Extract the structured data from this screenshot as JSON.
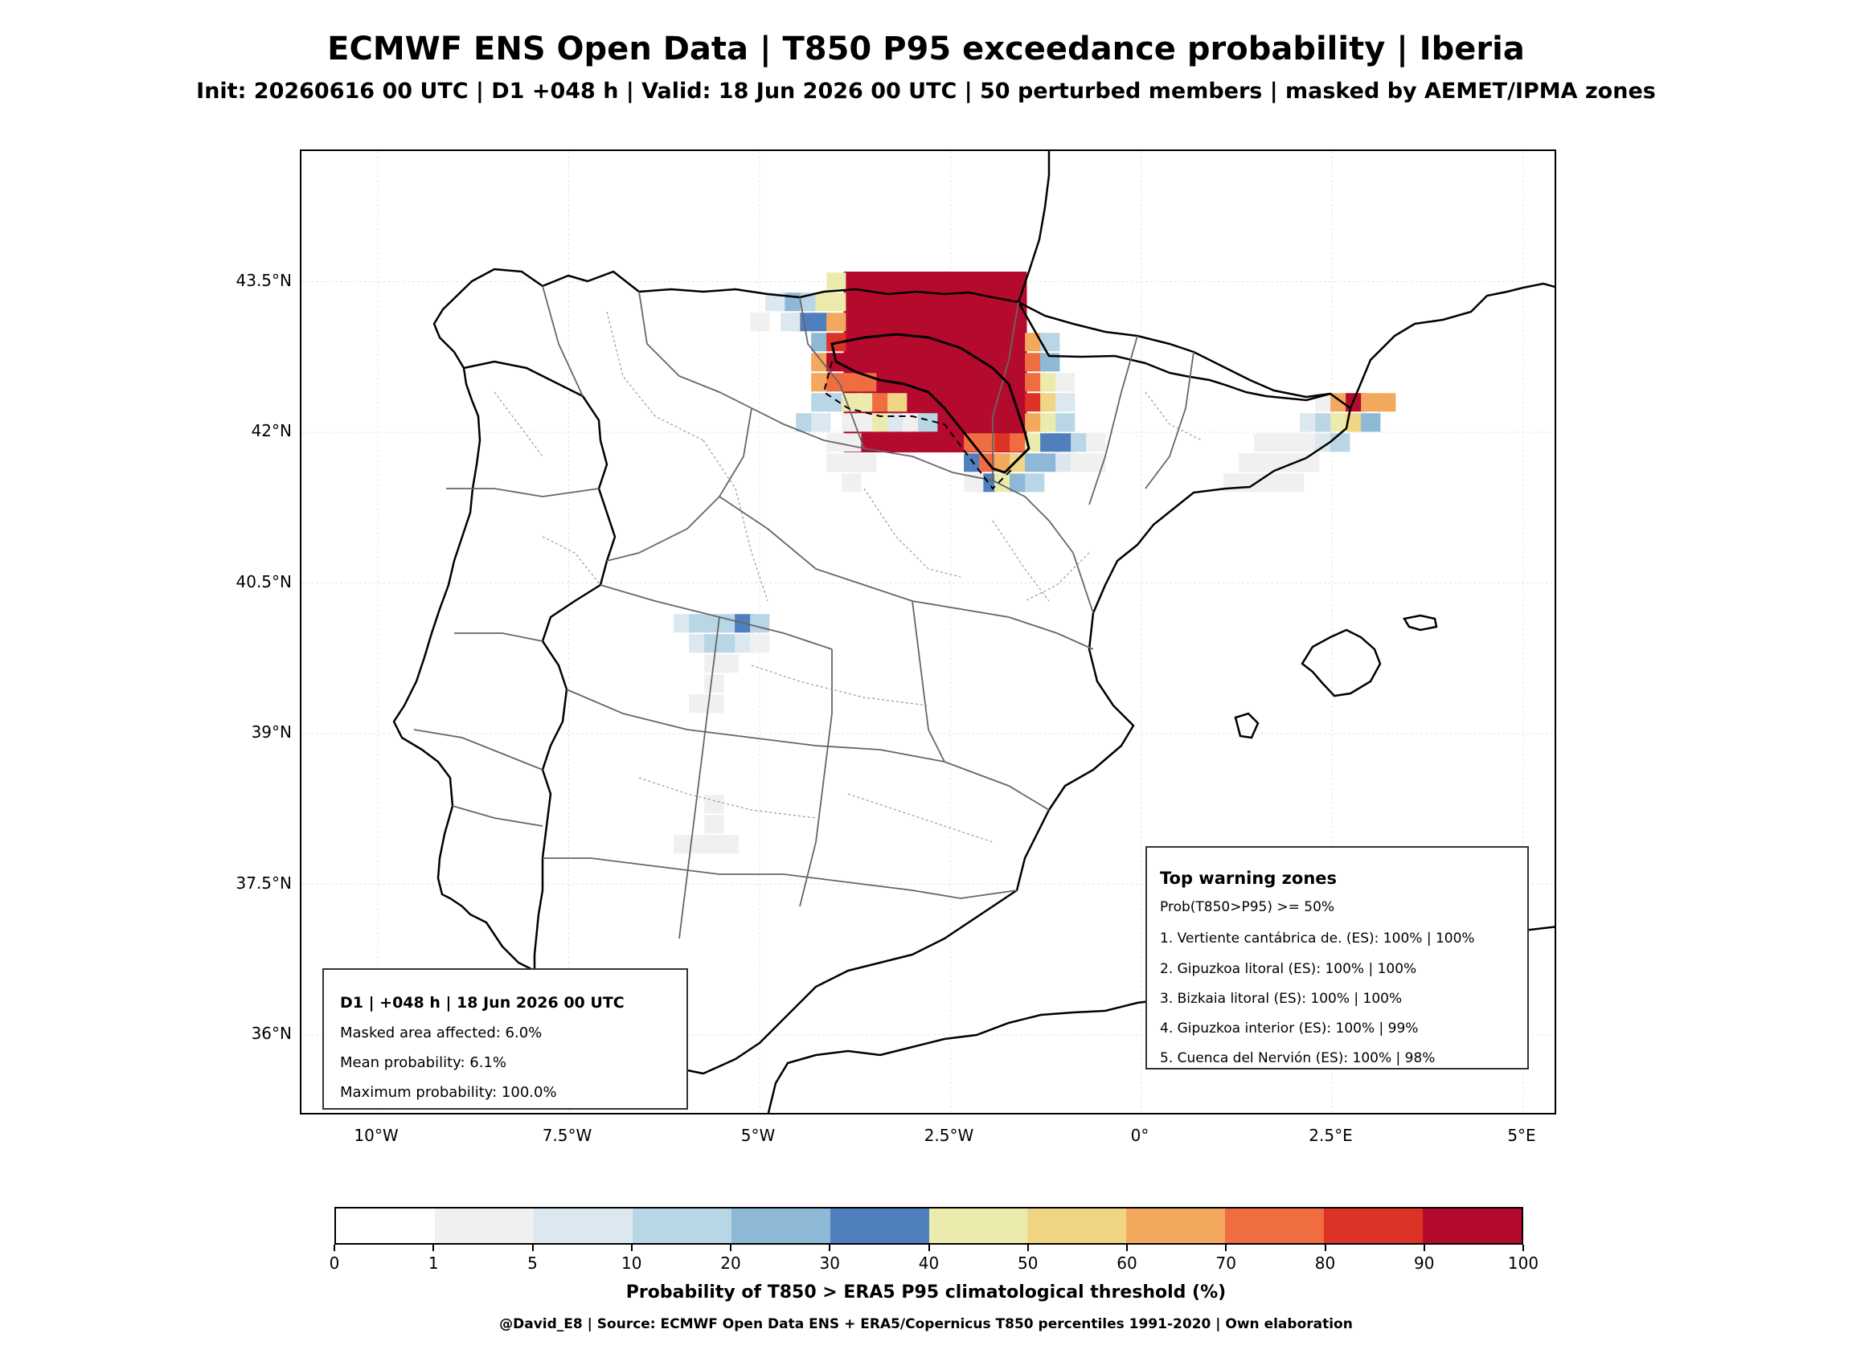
{
  "title": "ECMWF ENS Open Data | T850 P95 exceedance probability | Iberia",
  "subtitle": "Init: 20260616 00 UTC | D1 +048 h | Valid: 18 Jun 2026 00 UTC | 50 perturbed members | masked by AEMET/IPMA zones",
  "map": {
    "lat_ticks": [
      {
        "label": "43.5°N",
        "value": 43.5
      },
      {
        "label": "42°N",
        "value": 42.0
      },
      {
        "label": "40.5°N",
        "value": 40.5
      },
      {
        "label": "39°N",
        "value": 39.0
      },
      {
        "label": "37.5°N",
        "value": 37.5
      },
      {
        "label": "36°N",
        "value": 36.0
      }
    ],
    "lon_ticks": [
      {
        "label": "10°W",
        "value": -10.0
      },
      {
        "label": "7.5°W",
        "value": -7.5
      },
      {
        "label": "5°W",
        "value": -5.0
      },
      {
        "label": "2.5°W",
        "value": -2.5
      },
      {
        "label": "0°",
        "value": 0.0
      },
      {
        "label": "2.5°E",
        "value": 2.5
      },
      {
        "label": "5°E",
        "value": 5.0
      }
    ],
    "extent": {
      "lon_min": -11.0,
      "lon_max": 5.5,
      "lat_min": 35.0,
      "lat_max": 44.8
    }
  },
  "summary_box": {
    "heading": "D1 | +048 h | 18 Jun 2026 00 UTC",
    "line1": "Masked area affected: 6.0%",
    "line2": "Mean probability: 6.1%",
    "line3": "Maximum probability: 100.0%"
  },
  "warning_box": {
    "heading": "Top warning zones",
    "criterion": "Prob(T850>P95) >= 50%",
    "zones": [
      "1. Vertiente cantábrica de. (ES): 100% | 100%",
      "2. Gipuzkoa litoral (ES): 100% | 100%",
      "3. Bizkaia litoral (ES): 100% | 100%",
      "4. Gipuzkoa interior (ES): 100% | 99%",
      "5. Cuenca del Nervión (ES): 100% | 98%"
    ]
  },
  "colorbar": {
    "label": "Probability of T850 > ERA5 P95 climatological threshold (%)",
    "ticks": [
      "0",
      "1",
      "5",
      "10",
      "20",
      "30",
      "40",
      "50",
      "60",
      "70",
      "80",
      "90",
      "100"
    ],
    "colors": [
      "#ffffff",
      "#f0f0f0",
      "#dce8f0",
      "#b9d6e6",
      "#8db8d6",
      "#4f7fbd",
      "#ecebae",
      "#f0d584",
      "#f2a95e",
      "#ef6d41",
      "#dc3326",
      "#b40a2d"
    ]
  },
  "credit": "@David_E8 | Source: ECMWF Open Data ENS + ERA5/Copernicus T850 percentiles 1991-2020 | Own elaboration",
  "probability_cells": [
    {
      "lon": -4.0,
      "lat": 43.5,
      "p": 45
    },
    {
      "lon": -4.2,
      "lat": 43.3,
      "p": 45
    },
    {
      "lon": -4.0,
      "lat": 43.3,
      "p": 45
    },
    {
      "lon": -4.4,
      "lat": 43.3,
      "p": 12
    },
    {
      "lon": -4.6,
      "lat": 43.3,
      "p": 22
    },
    {
      "lon": -4.8,
      "lat": 43.3,
      "p": 8
    },
    {
      "lon": -4.4,
      "lat": 43.1,
      "p": 35
    },
    {
      "lon": -4.2,
      "lat": 43.1,
      "p": 35
    },
    {
      "lon": -4.0,
      "lat": 43.1,
      "p": 65
    },
    {
      "lon": -4.6,
      "lat": 43.1,
      "p": 8
    },
    {
      "lon": -5.0,
      "lat": 43.1,
      "p": 3
    },
    {
      "lon": -4.2,
      "lat": 42.9,
      "p": 22
    },
    {
      "lon": -4.0,
      "lat": 42.9,
      "p": 85
    },
    {
      "lon": -4.2,
      "lat": 42.7,
      "p": 65
    },
    {
      "lon": -4.0,
      "lat": 42.7,
      "p": 95
    },
    {
      "lon": -4.2,
      "lat": 42.5,
      "p": 65
    },
    {
      "lon": -4.0,
      "lat": 42.5,
      "p": 75
    },
    {
      "lon": -3.8,
      "lat": 42.5,
      "p": 75
    },
    {
      "lon": -3.6,
      "lat": 42.5,
      "p": 75
    },
    {
      "lon": -4.2,
      "lat": 42.3,
      "p": 15
    },
    {
      "lon": -4.0,
      "lat": 42.3,
      "p": 15
    },
    {
      "lon": -3.8,
      "lat": 42.3,
      "p": 45
    },
    {
      "lon": -3.6,
      "lat": 42.3,
      "p": 45
    },
    {
      "lon": -3.4,
      "lat": 42.3,
      "p": 75
    },
    {
      "lon": -3.2,
      "lat": 42.3,
      "p": 55
    },
    {
      "lon": -4.4,
      "lat": 42.1,
      "p": 12
    },
    {
      "lon": -4.2,
      "lat": 42.1,
      "p": 8
    },
    {
      "lon": -3.8,
      "lat": 42.1,
      "p": 3
    },
    {
      "lon": -3.6,
      "lat": 42.1,
      "p": 3
    },
    {
      "lon": -3.4,
      "lat": 42.1,
      "p": 45
    },
    {
      "lon": -3.2,
      "lat": 42.1,
      "p": 8
    },
    {
      "lon": -3.0,
      "lat": 42.1,
      "p": 3
    },
    {
      "lon": -2.8,
      "lat": 42.1,
      "p": 12
    },
    {
      "lon": -4.0,
      "lat": 41.9,
      "p": 3
    },
    {
      "lon": -3.8,
      "lat": 41.9,
      "p": 3
    },
    {
      "lon": -4.0,
      "lat": 41.7,
      "p": 3
    },
    {
      "lon": -3.8,
      "lat": 41.7,
      "p": 3
    },
    {
      "lon": -3.6,
      "lat": 41.7,
      "p": 3
    },
    {
      "lon": -3.8,
      "lat": 41.5,
      "p": 3
    },
    {
      "lon": -1.4,
      "lat": 42.9,
      "p": 65
    },
    {
      "lon": -1.2,
      "lat": 42.9,
      "p": 12
    },
    {
      "lon": -1.4,
      "lat": 42.7,
      "p": 75
    },
    {
      "lon": -1.2,
      "lat": 42.7,
      "p": 25
    },
    {
      "lon": -1.4,
      "lat": 42.5,
      "p": 75
    },
    {
      "lon": -1.2,
      "lat": 42.5,
      "p": 45
    },
    {
      "lon": -1.0,
      "lat": 42.5,
      "p": 3
    },
    {
      "lon": -1.4,
      "lat": 42.3,
      "p": 85
    },
    {
      "lon": -1.2,
      "lat": 42.3,
      "p": 55
    },
    {
      "lon": -1.0,
      "lat": 42.3,
      "p": 8
    },
    {
      "lon": -1.6,
      "lat": 42.1,
      "p": 95
    },
    {
      "lon": -1.4,
      "lat": 42.1,
      "p": 65
    },
    {
      "lon": -1.2,
      "lat": 42.1,
      "p": 45
    },
    {
      "lon": -1.0,
      "lat": 42.1,
      "p": 12
    },
    {
      "lon": -2.2,
      "lat": 41.9,
      "p": 75
    },
    {
      "lon": -2.0,
      "lat": 41.9,
      "p": 75
    },
    {
      "lon": -1.8,
      "lat": 41.9,
      "p": 85
    },
    {
      "lon": -1.6,
      "lat": 41.9,
      "p": 75
    },
    {
      "lon": -1.4,
      "lat": 41.9,
      "p": 45
    },
    {
      "lon": -1.2,
      "lat": 41.9,
      "p": 35
    },
    {
      "lon": -1.0,
      "lat": 41.9,
      "p": 35
    },
    {
      "lon": -0.8,
      "lat": 41.9,
      "p": 15
    },
    {
      "lon": -0.6,
      "lat": 41.9,
      "p": 3
    },
    {
      "lon": -2.2,
      "lat": 41.7,
      "p": 35
    },
    {
      "lon": -2.0,
      "lat": 41.7,
      "p": 75
    },
    {
      "lon": -1.8,
      "lat": 41.7,
      "p": 65
    },
    {
      "lon": -1.6,
      "lat": 41.7,
      "p": 55
    },
    {
      "lon": -1.4,
      "lat": 41.7,
      "p": 22
    },
    {
      "lon": -1.2,
      "lat": 41.7,
      "p": 22
    },
    {
      "lon": -1.0,
      "lat": 41.7,
      "p": 8
    },
    {
      "lon": -0.8,
      "lat": 41.7,
      "p": 3
    },
    {
      "lon": -0.6,
      "lat": 41.7,
      "p": 3
    },
    {
      "lon": -2.0,
      "lat": 41.5,
      "p": 35
    },
    {
      "lon": -1.8,
      "lat": 41.5,
      "p": 45
    },
    {
      "lon": -1.6,
      "lat": 41.5,
      "p": 25
    },
    {
      "lon": -1.4,
      "lat": 41.5,
      "p": 12
    },
    {
      "lon": -2.2,
      "lat": 41.5,
      "p": 3
    },
    {
      "lon": 2.4,
      "lat": 42.3,
      "p": 3
    },
    {
      "lon": 2.6,
      "lat": 42.3,
      "p": 65
    },
    {
      "lon": 2.8,
      "lat": 42.3,
      "p": 95
    },
    {
      "lon": 3.0,
      "lat": 42.3,
      "p": 65
    },
    {
      "lon": 3.2,
      "lat": 42.3,
      "p": 65
    },
    {
      "lon": 2.2,
      "lat": 42.1,
      "p": 8
    },
    {
      "lon": 2.4,
      "lat": 42.1,
      "p": 15
    },
    {
      "lon": 2.6,
      "lat": 42.1,
      "p": 45
    },
    {
      "lon": 2.8,
      "lat": 42.1,
      "p": 55
    },
    {
      "lon": 3.0,
      "lat": 42.1,
      "p": 25
    },
    {
      "lon": 2.0,
      "lat": 41.9,
      "p": 3
    },
    {
      "lon": 2.2,
      "lat": 41.9,
      "p": 3
    },
    {
      "lon": 2.4,
      "lat": 41.9,
      "p": 8
    },
    {
      "lon": 2.6,
      "lat": 41.9,
      "p": 12
    },
    {
      "lon": 1.6,
      "lat": 41.9,
      "p": 3
    },
    {
      "lon": 1.8,
      "lat": 41.9,
      "p": 3
    },
    {
      "lon": 1.4,
      "lat": 41.7,
      "p": 3
    },
    {
      "lon": 1.6,
      "lat": 41.7,
      "p": 3
    },
    {
      "lon": 1.8,
      "lat": 41.7,
      "p": 3
    },
    {
      "lon": 2.0,
      "lat": 41.7,
      "p": 3
    },
    {
      "lon": 2.2,
      "lat": 41.7,
      "p": 3
    },
    {
      "lon": 1.2,
      "lat": 41.5,
      "p": 3
    },
    {
      "lon": 1.4,
      "lat": 41.5,
      "p": 3
    },
    {
      "lon": 1.6,
      "lat": 41.5,
      "p": 3
    },
    {
      "lon": 1.8,
      "lat": 41.5,
      "p": 3
    },
    {
      "lon": 2.0,
      "lat": 41.5,
      "p": 3
    },
    {
      "lon": -6.0,
      "lat": 40.1,
      "p": 8
    },
    {
      "lon": -5.8,
      "lat": 40.1,
      "p": 12
    },
    {
      "lon": -5.6,
      "lat": 40.1,
      "p": 12
    },
    {
      "lon": -5.4,
      "lat": 40.1,
      "p": 12
    },
    {
      "lon": -5.2,
      "lat": 40.1,
      "p": 35
    },
    {
      "lon": -5.0,
      "lat": 40.1,
      "p": 15
    },
    {
      "lon": -5.8,
      "lat": 39.9,
      "p": 8
    },
    {
      "lon": -5.6,
      "lat": 39.9,
      "p": 12
    },
    {
      "lon": -5.4,
      "lat": 39.9,
      "p": 15
    },
    {
      "lon": -5.2,
      "lat": 39.9,
      "p": 8
    },
    {
      "lon": -5.0,
      "lat": 39.9,
      "p": 3
    },
    {
      "lon": -5.6,
      "lat": 39.7,
      "p": 3
    },
    {
      "lon": -5.4,
      "lat": 39.7,
      "p": 3
    },
    {
      "lon": -5.6,
      "lat": 39.5,
      "p": 3
    },
    {
      "lon": -5.8,
      "lat": 39.3,
      "p": 3
    },
    {
      "lon": -5.6,
      "lat": 39.3,
      "p": 3
    },
    {
      "lon": -5.6,
      "lat": 38.3,
      "p": 3
    },
    {
      "lon": -5.6,
      "lat": 38.1,
      "p": 3
    },
    {
      "lon": -5.8,
      "lat": 37.9,
      "p": 3
    },
    {
      "lon": -5.6,
      "lat": 37.9,
      "p": 3
    },
    {
      "lon": -5.4,
      "lat": 37.9,
      "p": 3
    },
    {
      "lon": -6.0,
      "lat": 37.9,
      "p": 3
    }
  ],
  "red_block": {
    "lon_min": -3.9,
    "lon_max": -1.5,
    "lat_max": 43.6,
    "lat_min": 41.8,
    "p": 95
  }
}
